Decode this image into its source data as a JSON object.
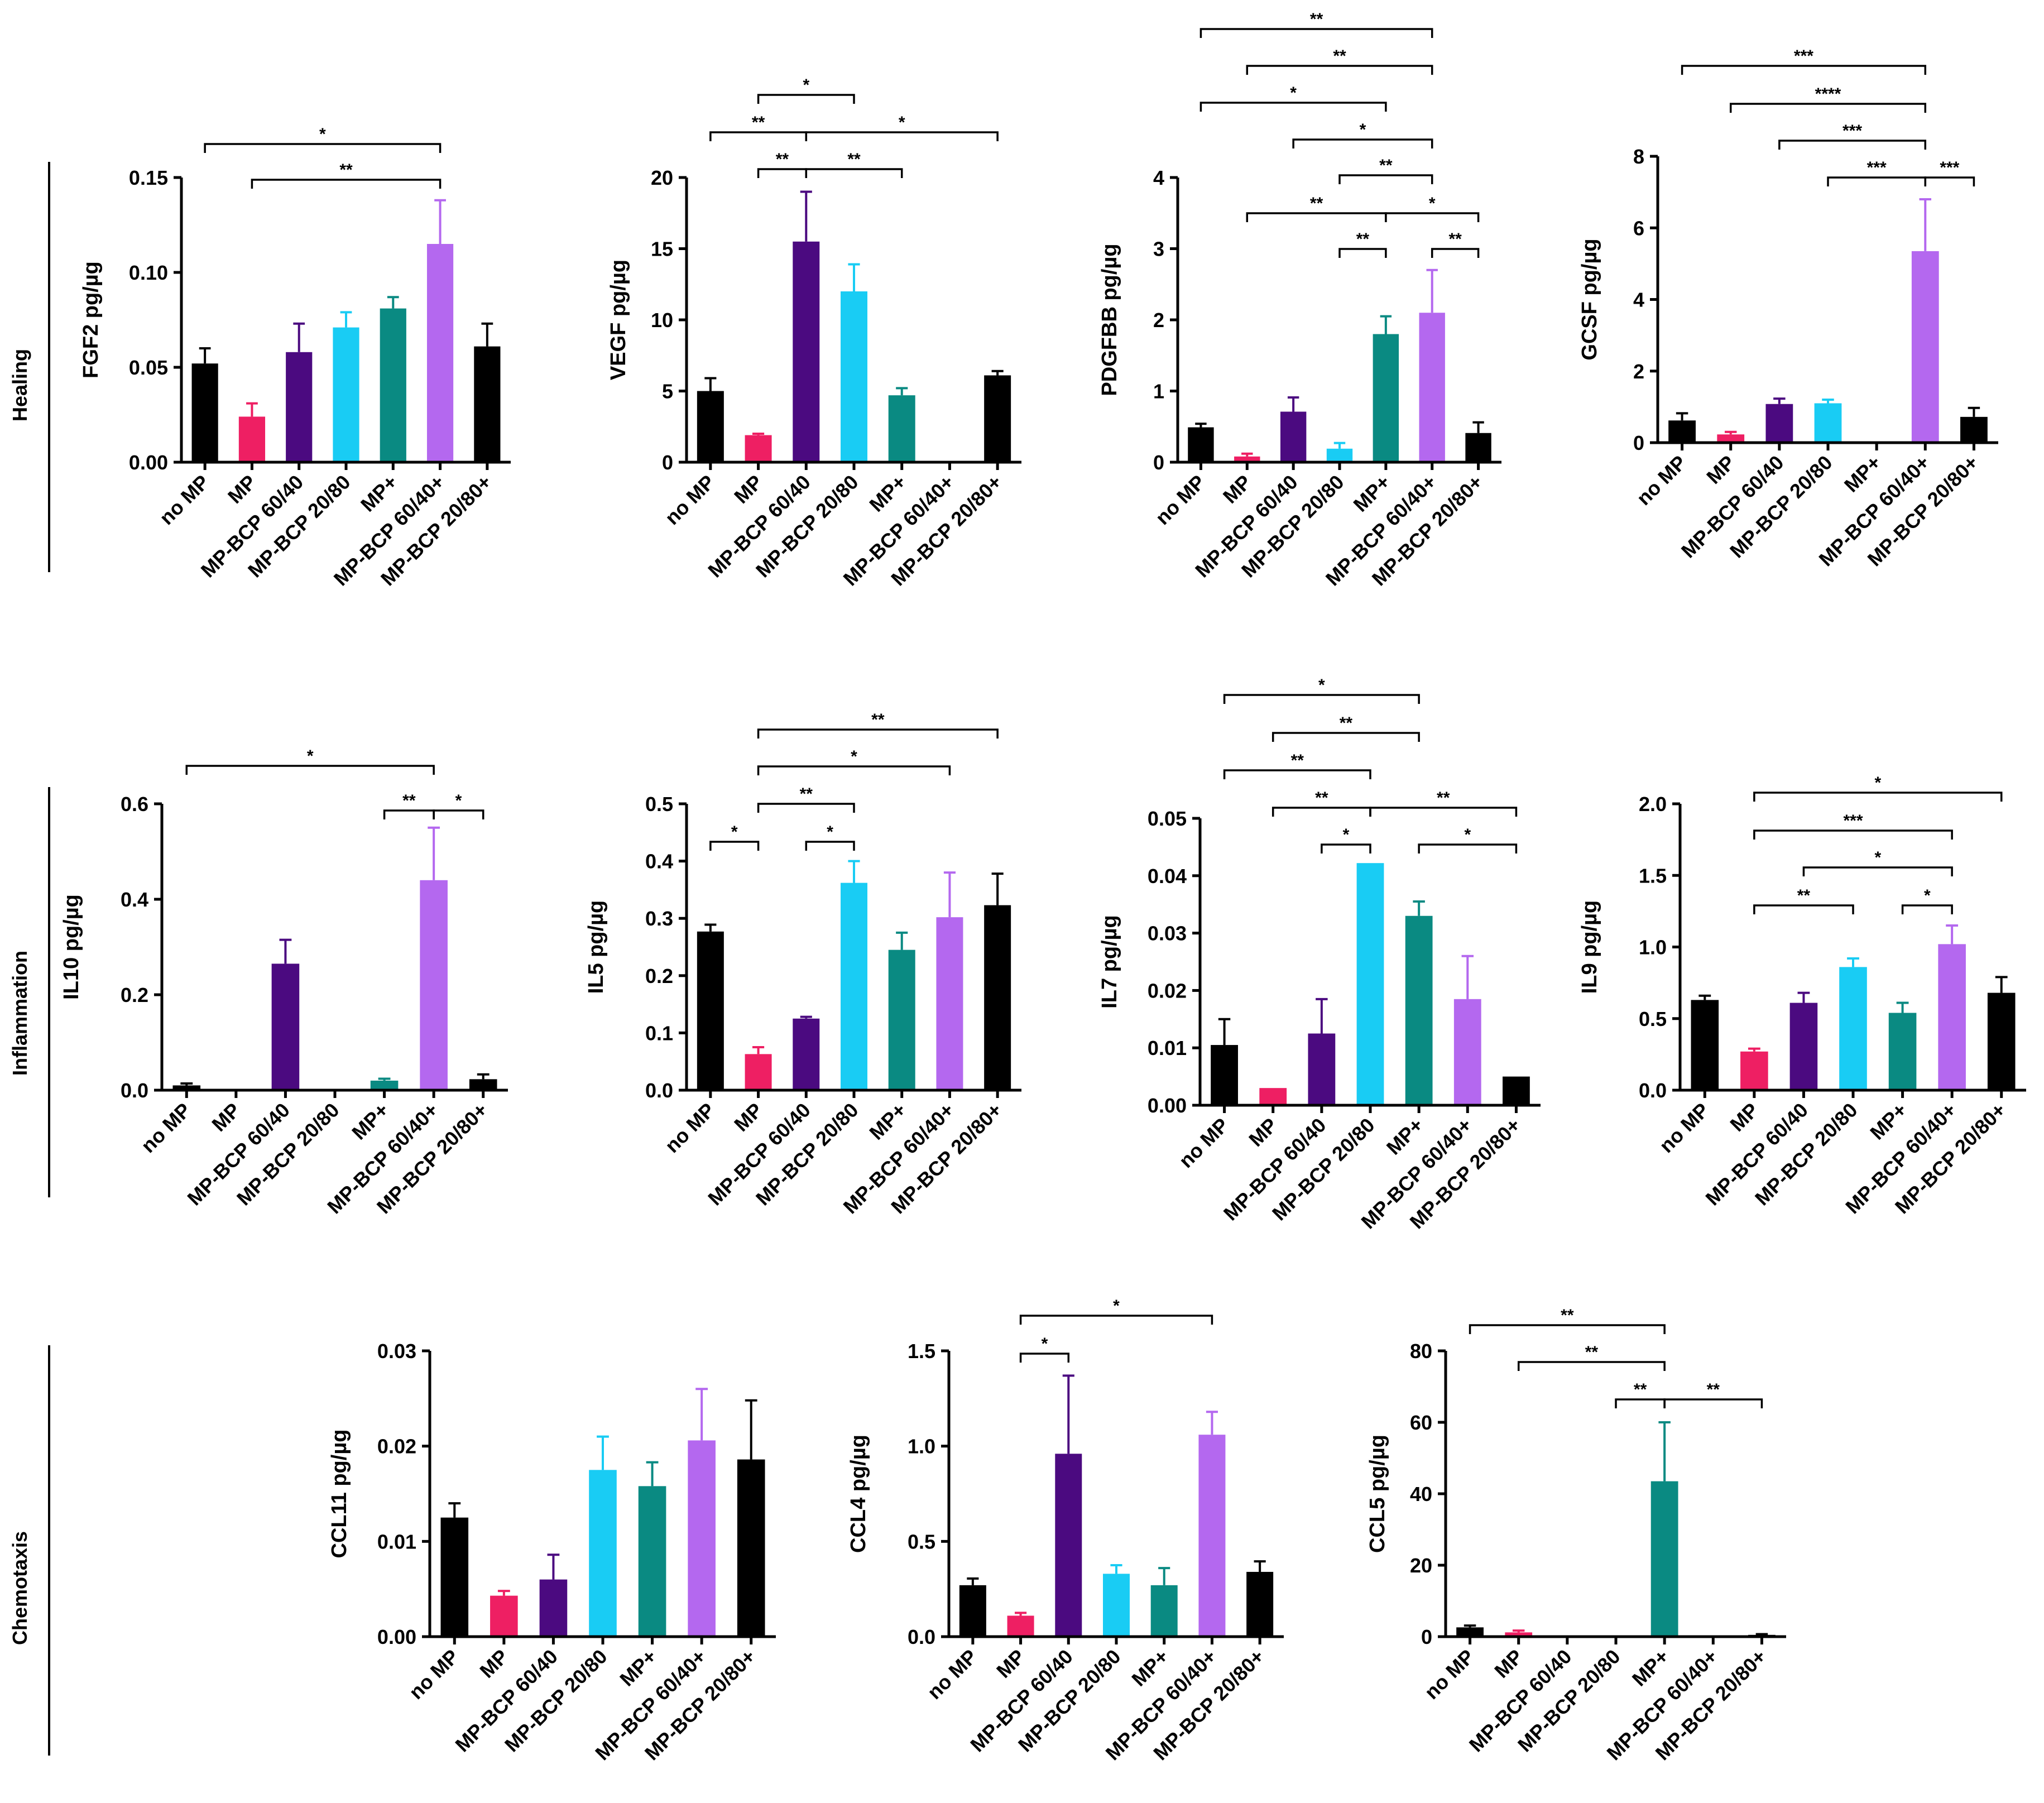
{
  "colors": {
    "no MP": "#000000",
    "MP": "#ee1f63",
    "MP-BCP 60/40": "#4b0a80",
    "MP-BCP 20/80": "#19ccf4",
    "MP+": "#0a8a82",
    "MP-BCP 60/40+": "#b468ef",
    "MP-BCP 20/80+": "#000000"
  },
  "row_groups": [
    {
      "label": "Healing"
    },
    {
      "label": "Inflammation"
    },
    {
      "label": "Chemotaxis"
    }
  ],
  "chart_data": [
    {
      "type": "bar",
      "row": 0,
      "ylabel": "FGF2 pg/µg",
      "categories": [
        "no MP",
        "MP",
        "MP-BCP 60/40",
        "MP-BCP 20/80",
        "MP+",
        "MP-BCP 60/40+",
        "MP-BCP 20/80+"
      ],
      "values": [
        0.052,
        0.024,
        0.058,
        0.071,
        0.081,
        0.115,
        0.061
      ],
      "errors": [
        0.008,
        0.007,
        0.015,
        0.008,
        0.006,
        0.023,
        0.012
      ],
      "ylim": [
        0,
        0.15
      ],
      "ticks": [
        0,
        0.05,
        0.1,
        0.15
      ],
      "tick_labels": [
        "0.00",
        "0.05",
        "0.10",
        "0.15"
      ],
      "significance": [
        {
          "from": 0,
          "to": 5,
          "label": "*"
        },
        {
          "from": 1,
          "to": 5,
          "label": "**"
        }
      ]
    },
    {
      "type": "bar",
      "row": 0,
      "ylabel": "VEGF pg/µg",
      "categories": [
        "no MP",
        "MP",
        "MP-BCP 60/40",
        "MP-BCP 20/80",
        "MP+",
        "MP-BCP 60/40+",
        "MP-BCP 20/80+"
      ],
      "values": [
        5.0,
        1.9,
        15.5,
        12.0,
        4.7,
        0,
        6.1
      ],
      "errors": [
        0.9,
        0.1,
        3.5,
        1.9,
        0.5,
        0,
        0.3
      ],
      "ylim": [
        0,
        20
      ],
      "ticks": [
        0,
        5,
        10,
        15,
        20
      ],
      "tick_labels": [
        "0",
        "5",
        "10",
        "15",
        "20"
      ],
      "significance": [
        {
          "from": 1,
          "to": 3,
          "label": "*"
        },
        {
          "from": 0,
          "to": 2,
          "label": "**"
        },
        {
          "from": 2,
          "to": 6,
          "label": "*"
        },
        {
          "from": 1,
          "to": 2,
          "label": "**"
        },
        {
          "from": 2,
          "to": 4,
          "label": "**"
        }
      ]
    },
    {
      "type": "bar",
      "row": 0,
      "ylabel": "PDGFBB pg/µg",
      "categories": [
        "no MP",
        "MP",
        "MP-BCP 60/40",
        "MP-BCP 20/80",
        "MP+",
        "MP-BCP 60/40+",
        "MP-BCP 20/80+"
      ],
      "values": [
        0.49,
        0.08,
        0.71,
        0.19,
        1.8,
        2.1,
        0.41
      ],
      "errors": [
        0.05,
        0.04,
        0.2,
        0.08,
        0.25,
        0.6,
        0.15
      ],
      "ylim": [
        0,
        4
      ],
      "ticks": [
        0,
        1,
        2,
        3,
        4
      ],
      "tick_labels": [
        "0",
        "1",
        "2",
        "3",
        "4"
      ],
      "significance": [
        {
          "from": 0,
          "to": 5,
          "label": "**"
        },
        {
          "from": 1,
          "to": 5,
          "label": "**"
        },
        {
          "from": 0,
          "to": 4,
          "label": "*"
        },
        {
          "from": 2,
          "to": 5,
          "label": "*"
        },
        {
          "from": 3,
          "to": 5,
          "label": "**"
        },
        {
          "from": 1,
          "to": 4,
          "label": "**"
        },
        {
          "from": 4,
          "to": 6,
          "label": "*"
        },
        {
          "from": 3,
          "to": 4,
          "label": "**"
        },
        {
          "from": 5,
          "to": 6,
          "label": "**"
        }
      ]
    },
    {
      "type": "bar",
      "row": 0,
      "ylabel": "GCSF pg/µg",
      "categories": [
        "no MP",
        "MP",
        "MP-BCP 60/40",
        "MP-BCP 20/80",
        "MP+",
        "MP-BCP 60/40+",
        "MP-BCP 20/80+"
      ],
      "values": [
        0.62,
        0.23,
        1.08,
        1.1,
        0,
        5.35,
        0.72
      ],
      "errors": [
        0.2,
        0.07,
        0.15,
        0.1,
        0,
        1.45,
        0.25
      ],
      "ylim": [
        0,
        8
      ],
      "ticks": [
        0,
        2,
        4,
        6,
        8
      ],
      "tick_labels": [
        "0",
        "2",
        "4",
        "6",
        "8"
      ],
      "significance": [
        {
          "from": 0,
          "to": 5,
          "label": "***"
        },
        {
          "from": 1,
          "to": 5,
          "label": "****"
        },
        {
          "from": 2,
          "to": 5,
          "label": "***"
        },
        {
          "from": 3,
          "to": 5,
          "label": "***"
        },
        {
          "from": 5,
          "to": 6,
          "label": "***"
        }
      ]
    },
    {
      "type": "bar",
      "row": 1,
      "ylabel": "IL10 pg/µg",
      "categories": [
        "no MP",
        "MP",
        "MP-BCP 60/40",
        "MP-BCP 20/80",
        "MP+",
        "MP-BCP 60/40+",
        "MP-BCP 20/80+"
      ],
      "values": [
        0.01,
        0,
        0.265,
        0,
        0.02,
        0.44,
        0.023
      ],
      "errors": [
        0.004,
        0,
        0.05,
        0,
        0.004,
        0.11,
        0.01
      ],
      "ylim": [
        0,
        0.6
      ],
      "ticks": [
        0,
        0.2,
        0.4,
        0.6
      ],
      "tick_labels": [
        "0.0",
        "0.2",
        "0.4",
        "0.6"
      ],
      "significance": [
        {
          "from": 0,
          "to": 5,
          "label": "*"
        },
        {
          "from": 4,
          "to": 5,
          "label": "**"
        },
        {
          "from": 5,
          "to": 6,
          "label": "*"
        }
      ]
    },
    {
      "type": "bar",
      "row": 1,
      "ylabel": "IL5 pg/µg",
      "categories": [
        "no MP",
        "MP",
        "MP-BCP 60/40",
        "MP-BCP 20/80",
        "MP+",
        "MP-BCP 60/40+",
        "MP-BCP 20/80+"
      ],
      "values": [
        0.277,
        0.063,
        0.125,
        0.362,
        0.245,
        0.302,
        0.323
      ],
      "errors": [
        0.012,
        0.012,
        0.003,
        0.038,
        0.03,
        0.078,
        0.055
      ],
      "ylim": [
        0,
        0.5
      ],
      "ticks": [
        0,
        0.1,
        0.2,
        0.3,
        0.4,
        0.5
      ],
      "tick_labels": [
        "0.0",
        "0.1",
        "0.2",
        "0.3",
        "0.4",
        "0.5"
      ],
      "significance": [
        {
          "from": 1,
          "to": 6,
          "label": "**"
        },
        {
          "from": 1,
          "to": 5,
          "label": "*"
        },
        {
          "from": 1,
          "to": 3,
          "label": "**"
        },
        {
          "from": 0,
          "to": 1,
          "label": "*"
        },
        {
          "from": 2,
          "to": 3,
          "label": "*"
        }
      ]
    },
    {
      "type": "bar",
      "row": 1,
      "ylabel": "IL7 pg/µg",
      "categories": [
        "no MP",
        "MP",
        "MP-BCP 60/40",
        "MP-BCP 20/80",
        "MP+",
        "MP-BCP 60/40+",
        "MP-BCP 20/80+"
      ],
      "values": [
        0.0105,
        0.003,
        0.0125,
        0.0422,
        0.033,
        0.0185,
        0.005
      ],
      "errors": [
        0.0045,
        0,
        0.006,
        0,
        0.0025,
        0.0075,
        0
      ],
      "ylim": [
        0,
        0.05
      ],
      "ticks": [
        0,
        0.01,
        0.02,
        0.03,
        0.04,
        0.05
      ],
      "tick_labels": [
        "0.00",
        "0.01",
        "0.02",
        "0.03",
        "0.04",
        "0.05"
      ],
      "significance": [
        {
          "from": 0,
          "to": 4,
          "label": "*"
        },
        {
          "from": 1,
          "to": 4,
          "label": "**"
        },
        {
          "from": 0,
          "to": 3,
          "label": "**"
        },
        {
          "from": 1,
          "to": 3,
          "label": "**"
        },
        {
          "from": 3,
          "to": 6,
          "label": "**"
        },
        {
          "from": 2,
          "to": 3,
          "label": "*"
        },
        {
          "from": 4,
          "to": 6,
          "label": "*"
        }
      ]
    },
    {
      "type": "bar",
      "row": 1,
      "ylabel": "IL9 pg/µg",
      "categories": [
        "no MP",
        "MP",
        "MP-BCP 60/40",
        "MP-BCP 20/80",
        "MP+",
        "MP-BCP 60/40+",
        "MP-BCP 20/80+"
      ],
      "values": [
        0.63,
        0.27,
        0.61,
        0.86,
        0.54,
        1.02,
        0.68
      ],
      "errors": [
        0.03,
        0.02,
        0.07,
        0.06,
        0.07,
        0.13,
        0.11
      ],
      "ylim": [
        0,
        2.0
      ],
      "ticks": [
        0,
        0.5,
        1.0,
        1.5,
        2.0
      ],
      "tick_labels": [
        "0.0",
        "0.5",
        "1.0",
        "1.5",
        "2.0"
      ],
      "significance": [
        {
          "from": 1,
          "to": 6,
          "label": "*"
        },
        {
          "from": 1,
          "to": 5,
          "label": "***"
        },
        {
          "from": 2,
          "to": 5,
          "label": "*"
        },
        {
          "from": 1,
          "to": 3,
          "label": "**"
        },
        {
          "from": 4,
          "to": 5,
          "label": "*"
        }
      ]
    },
    {
      "type": "bar",
      "row": 2,
      "ylabel": "CCL11 pg/µg",
      "categories": [
        "no MP",
        "MP",
        "MP-BCP 60/40",
        "MP-BCP 20/80",
        "MP+",
        "MP-BCP 60/40+",
        "MP-BCP 20/80+"
      ],
      "values": [
        0.0125,
        0.0043,
        0.006,
        0.0175,
        0.0158,
        0.0206,
        0.0186
      ],
      "errors": [
        0.0015,
        0.0005,
        0.0026,
        0.0035,
        0.0025,
        0.0054,
        0.0062
      ],
      "ylim": [
        0,
        0.03
      ],
      "ticks": [
        0,
        0.01,
        0.02,
        0.03
      ],
      "tick_labels": [
        "0.00",
        "0.01",
        "0.02",
        "0.03"
      ],
      "significance": []
    },
    {
      "type": "bar",
      "row": 2,
      "ylabel": "CCL4 pg/µg",
      "categories": [
        "no MP",
        "MP",
        "MP-BCP 60/40",
        "MP-BCP 20/80",
        "MP+",
        "MP-BCP 60/40+",
        "MP-BCP 20/80+"
      ],
      "values": [
        0.27,
        0.11,
        0.96,
        0.33,
        0.27,
        1.06,
        0.34
      ],
      "errors": [
        0.035,
        0.015,
        0.41,
        0.045,
        0.09,
        0.12,
        0.055
      ],
      "ylim": [
        0,
        1.5
      ],
      "ticks": [
        0,
        0.5,
        1.0,
        1.5
      ],
      "tick_labels": [
        "0.0",
        "0.5",
        "1.0",
        "1.5"
      ],
      "significance": [
        {
          "from": 1,
          "to": 5,
          "label": "*"
        },
        {
          "from": 1,
          "to": 2,
          "label": "*"
        }
      ]
    },
    {
      "type": "bar",
      "row": 2,
      "ylabel": "CCL5 pg/µg",
      "categories": [
        "no MP",
        "MP",
        "MP-BCP 60/40",
        "MP-BCP 20/80",
        "MP+",
        "MP-BCP 60/40+",
        "MP-BCP 20/80+"
      ],
      "values": [
        2.6,
        1.2,
        0,
        0.3,
        43.5,
        0,
        0.5
      ],
      "errors": [
        0.5,
        0.5,
        0,
        0,
        16.5,
        0,
        0.2
      ],
      "ylim": [
        0,
        80
      ],
      "ticks": [
        0,
        20,
        40,
        60,
        80
      ],
      "tick_labels": [
        "0",
        "20",
        "40",
        "60",
        "80"
      ],
      "significance": [
        {
          "from": 0,
          "to": 4,
          "label": "**"
        },
        {
          "from": 1,
          "to": 4,
          "label": "**"
        },
        {
          "from": 3,
          "to": 4,
          "label": "**"
        },
        {
          "from": 4,
          "to": 6,
          "label": "**"
        }
      ]
    }
  ]
}
